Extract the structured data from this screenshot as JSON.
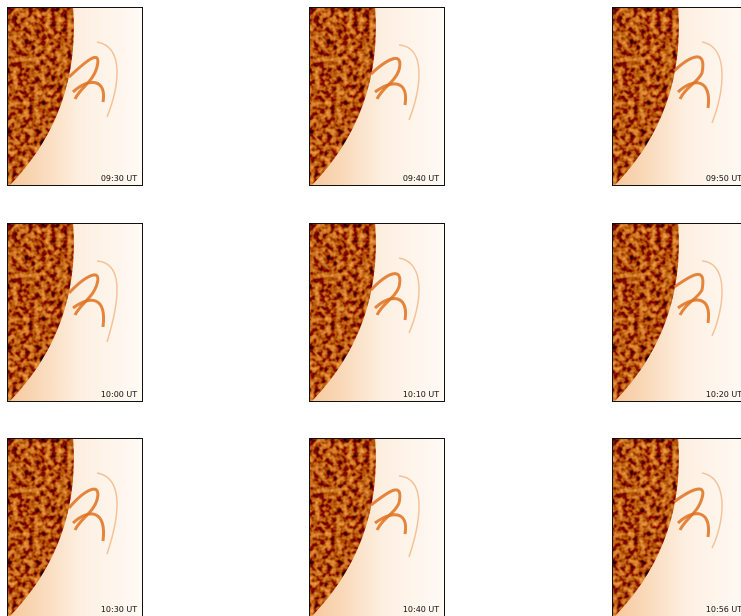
{
  "panels": [
    {
      "time": "09:30 UT"
    },
    {
      "time": "09:40 UT"
    },
    {
      "time": "09:50 UT"
    },
    {
      "time": "10:00 UT"
    },
    {
      "time": "10:10 UT"
    },
    {
      "time": "10:20 UT"
    },
    {
      "time": "10:30 UT"
    },
    {
      "time": "10:40 UT"
    },
    {
      "time": "10:56 UT"
    }
  ]
}
